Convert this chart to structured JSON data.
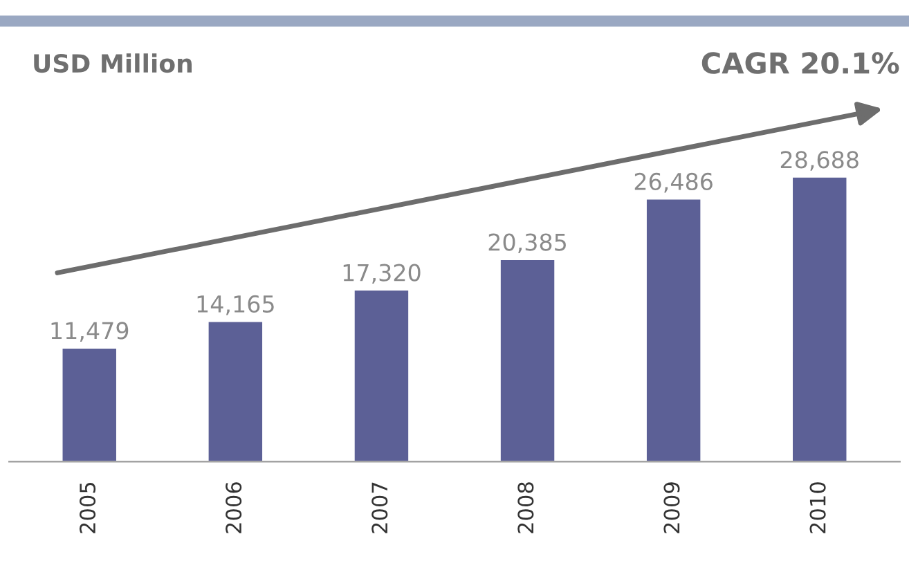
{
  "chart_data": {
    "type": "bar",
    "ylabel": "USD Million",
    "annotations": [
      "CAGR 20.1%"
    ],
    "categories": [
      "2005",
      "2006",
      "2007",
      "2008",
      "2009",
      "2010"
    ],
    "values": [
      11479,
      14165,
      17320,
      20385,
      26486,
      28688
    ],
    "value_labels": [
      "11,479",
      "14,165",
      "17,320",
      "20,385",
      "26,486",
      "28,688"
    ],
    "color": "#5c6096",
    "grid": false,
    "legend": false
  }
}
